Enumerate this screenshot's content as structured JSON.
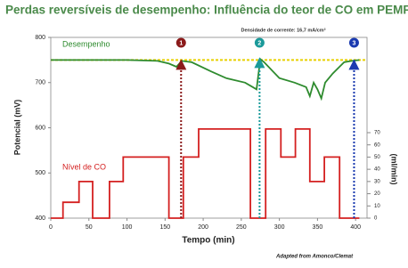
{
  "chart_data": {
    "type": "line",
    "title": "Perdas reversíveis de desempenho: Influência do teor de CO em PEMFC",
    "subtitle": "Densidade de corrente: 16,7 mA/cm²",
    "source": "Adapted from Amonco/Clemat",
    "x_label": "Tempo (min)",
    "y_label": "Potencial (mV)",
    "y2_label": "(ml/min)",
    "xlim": [
      0,
      415
    ],
    "xticks": [
      0,
      50,
      100,
      150,
      200,
      250,
      300,
      350,
      400
    ],
    "ylim": [
      400,
      800
    ],
    "yticks": [
      400,
      500,
      600,
      700,
      800
    ],
    "y2lim": [
      0,
      148
    ],
    "y2ticks": [
      0,
      10,
      20,
      30,
      40,
      50,
      60,
      70
    ],
    "reference_line": {
      "value": 750,
      "color": "#e8d000"
    },
    "series": [
      {
        "name": "Desempenho",
        "color": "#2e8b2e",
        "x": [
          0,
          50,
          100,
          140,
          155,
          165,
          172,
          185,
          210,
          230,
          255,
          265,
          270,
          275,
          280,
          300,
          320,
          335,
          340,
          345,
          350,
          355,
          360,
          370,
          385,
          395,
          405
        ],
        "values": [
          750,
          750,
          750,
          748,
          742,
          735,
          748,
          745,
          725,
          710,
          700,
          690,
          685,
          752,
          745,
          710,
          700,
          690,
          670,
          700,
          685,
          665,
          700,
          720,
          745,
          748,
          750
        ]
      },
      {
        "name": "Nível de CO",
        "color": "#d42020",
        "axis": "y2",
        "x": [
          0,
          16,
          16,
          37,
          37,
          55,
          55,
          77,
          77,
          95,
          95,
          155,
          155,
          174,
          174,
          194,
          194,
          262,
          262,
          282,
          282,
          302,
          302,
          321,
          321,
          340,
          340,
          359,
          359,
          379,
          379,
          405
        ],
        "values": [
          0,
          0,
          13,
          13,
          30,
          30,
          0,
          0,
          30,
          30,
          50,
          50,
          0,
          0,
          50,
          50,
          73,
          73,
          0,
          0,
          73,
          73,
          50,
          50,
          73,
          73,
          30,
          30,
          50,
          50,
          0,
          0
        ]
      }
    ],
    "markers": [
      {
        "label": "1",
        "x": 171,
        "y": 748,
        "color": "#8b1a1a"
      },
      {
        "label": "2",
        "x": 274,
        "y": 752,
        "color": "#1a9a9a"
      },
      {
        "label": "3",
        "x": 398,
        "y": 748,
        "color": "#1a3ab0"
      }
    ]
  }
}
